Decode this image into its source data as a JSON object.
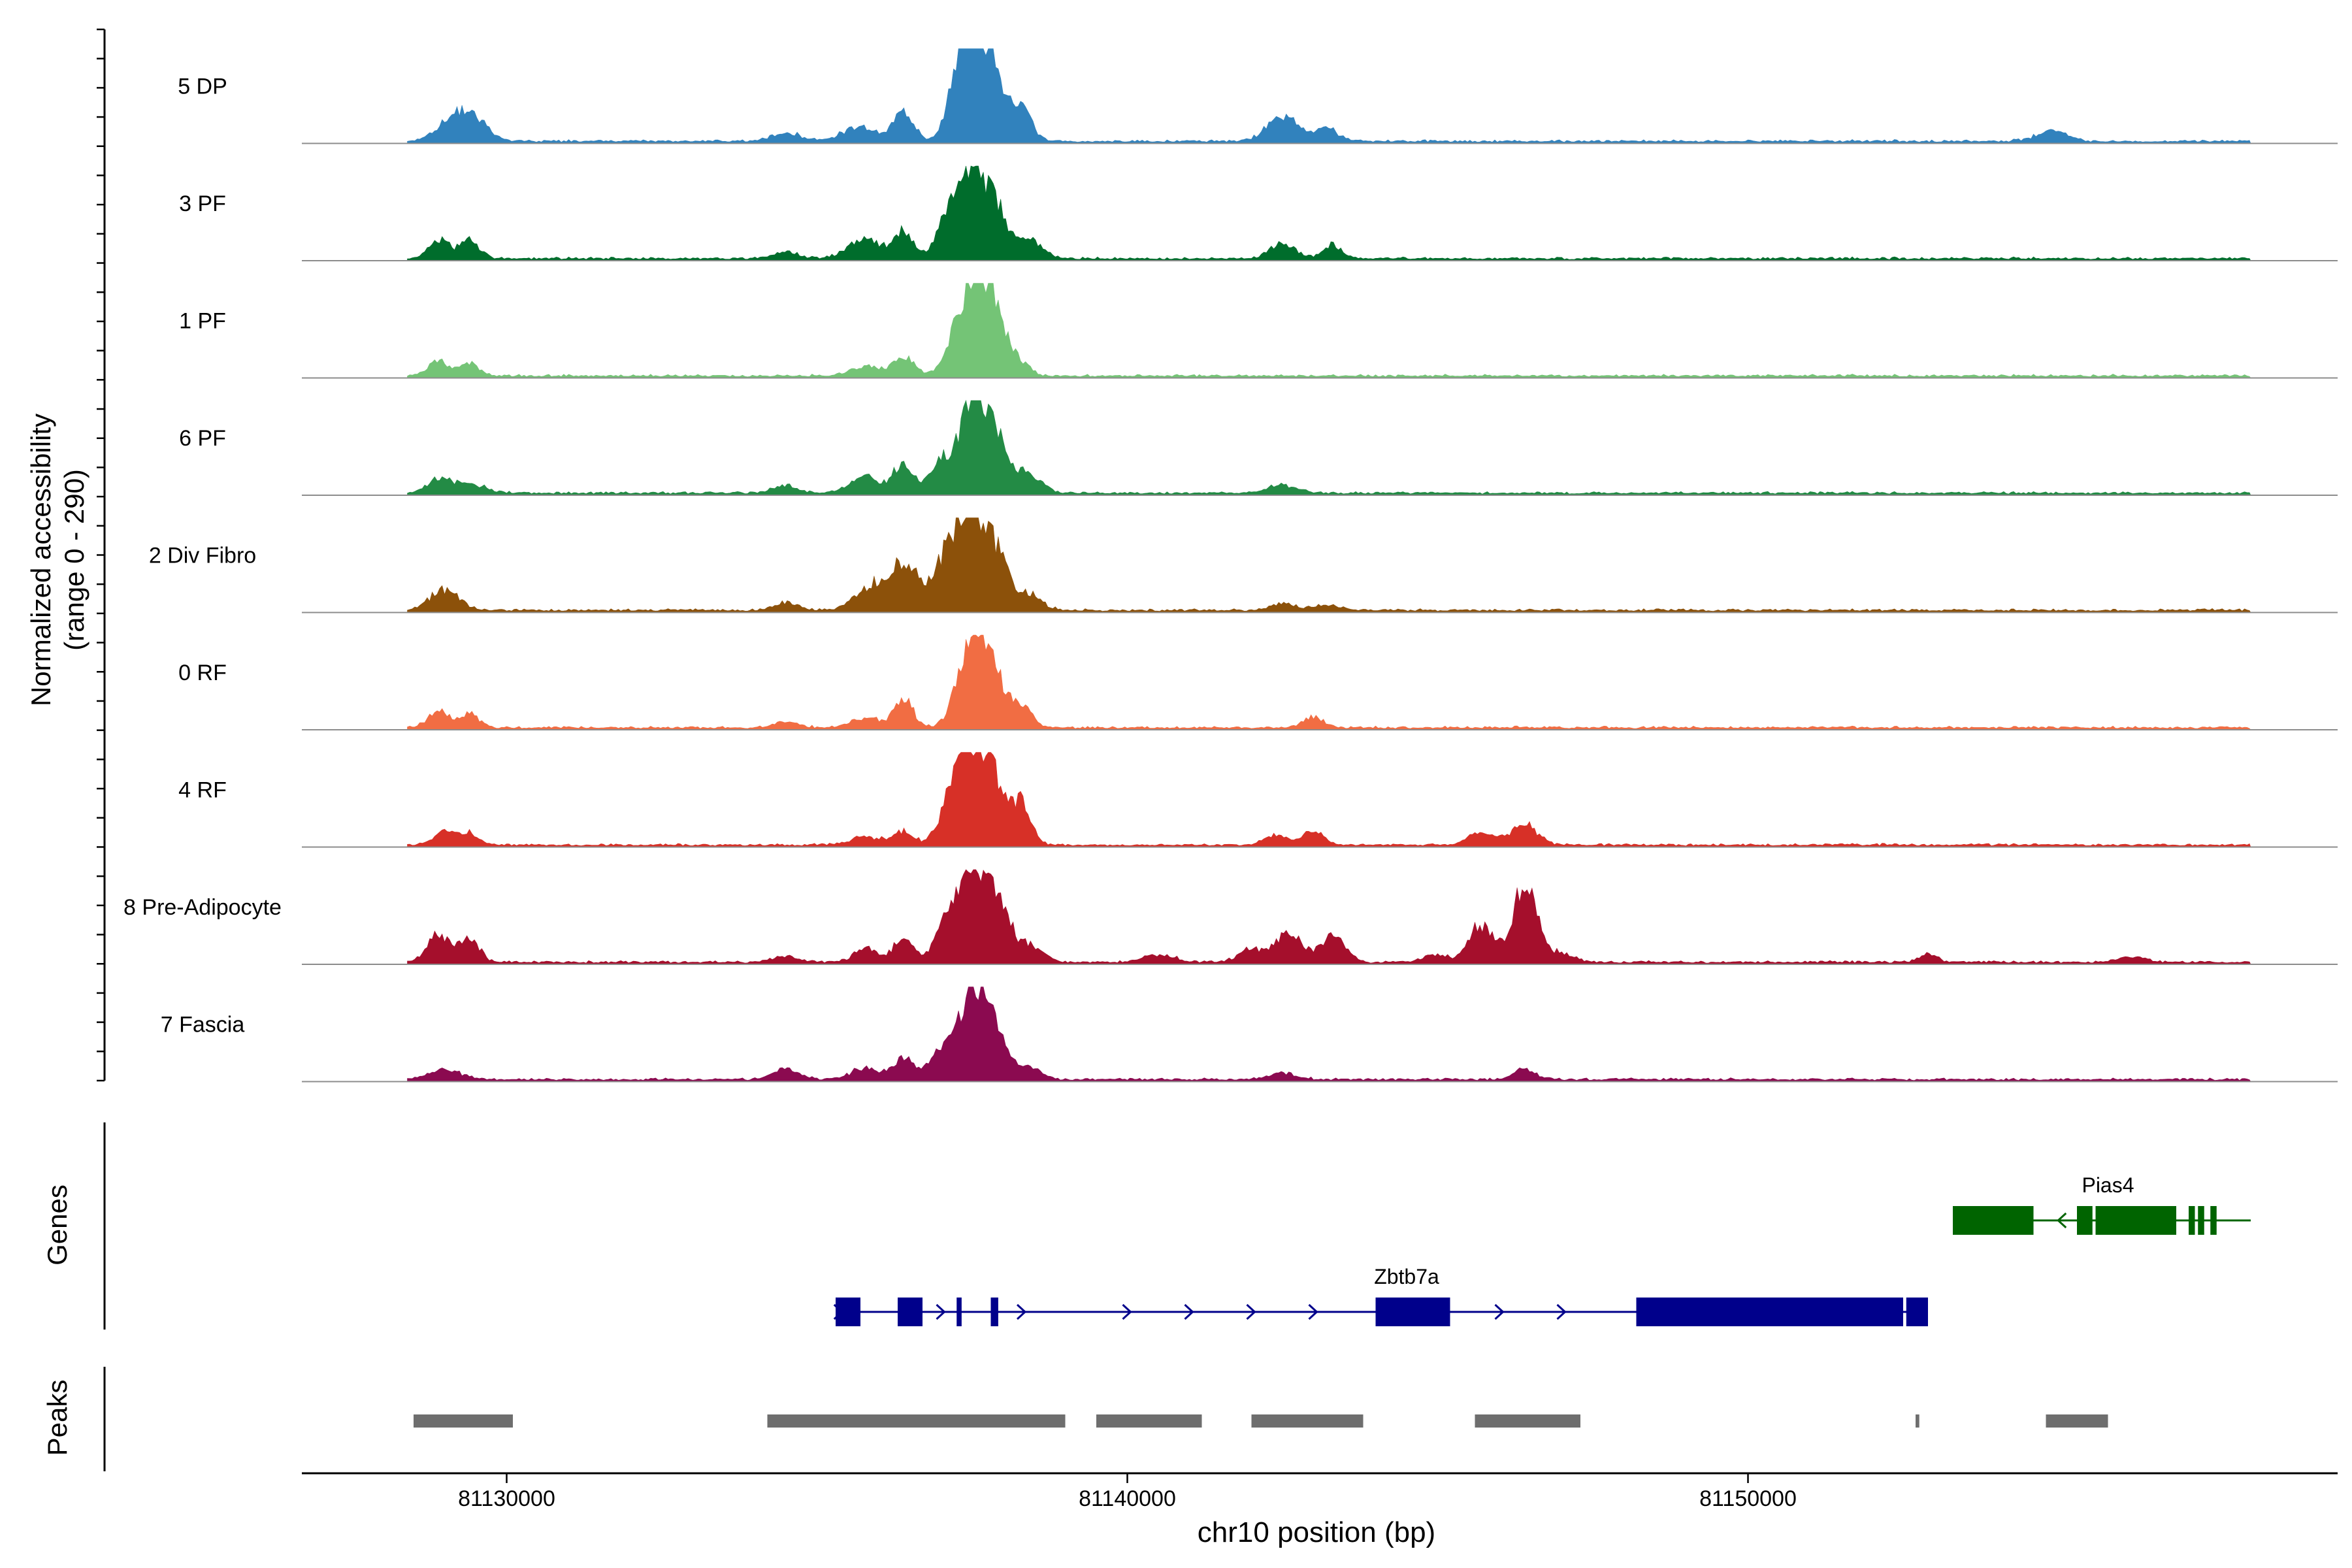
{
  "chart_data": {
    "type": "area",
    "title": "",
    "ylabel": "Normalized accessibility",
    "ylabel2": "(range 0 - 290)",
    "yrange": [
      0,
      290
    ],
    "xlabel": "chr10 position (bp)",
    "xlim": [
      81126700,
      81159500
    ],
    "xticks": [
      81130000,
      81140000,
      81150000
    ],
    "xtick_labels": [
      "81130000",
      "81140000",
      "81150000"
    ],
    "track_labels": {
      "genes": "Genes",
      "peaks": "Peaks"
    },
    "tracks": [
      {
        "name": "5 DP",
        "color": "#3182bd",
        "peaks": [
          [
            81129400,
            0.3,
            250
          ],
          [
            81129000,
            0.12,
            220
          ],
          [
            81134500,
            0.1,
            220
          ],
          [
            81135700,
            0.14,
            300
          ],
          [
            81136400,
            0.32,
            160
          ],
          [
            81137300,
            0.78,
            180
          ],
          [
            81137600,
            0.95,
            170
          ],
          [
            81137900,
            0.55,
            170
          ],
          [
            81138300,
            0.35,
            160
          ],
          [
            81142500,
            0.26,
            250
          ],
          [
            81143200,
            0.13,
            200
          ],
          [
            81154900,
            0.1,
            250
          ]
        ]
      },
      {
        "name": "3 PF",
        "color": "#006d2c",
        "peaks": [
          [
            81128900,
            0.2,
            160
          ],
          [
            81129400,
            0.2,
            160
          ],
          [
            81134500,
            0.08,
            200
          ],
          [
            81135800,
            0.2,
            280
          ],
          [
            81136400,
            0.28,
            150
          ],
          [
            81137100,
            0.45,
            170
          ],
          [
            81137500,
            1.0,
            200
          ],
          [
            81137900,
            0.45,
            170
          ],
          [
            81138400,
            0.22,
            200
          ],
          [
            81142500,
            0.16,
            200
          ],
          [
            81143300,
            0.14,
            160
          ]
        ]
      },
      {
        "name": "1 PF",
        "color": "#74c476",
        "peaks": [
          [
            81128900,
            0.16,
            160
          ],
          [
            81129400,
            0.12,
            160
          ],
          [
            81135800,
            0.1,
            250
          ],
          [
            81136400,
            0.2,
            160
          ],
          [
            81137500,
            1.0,
            260
          ],
          [
            81137900,
            0.45,
            200
          ],
          [
            81138300,
            0.1,
            150
          ]
        ]
      },
      {
        "name": "6 PF",
        "color": "#238b45",
        "peaks": [
          [
            81128900,
            0.14,
            180
          ],
          [
            81129400,
            0.1,
            250
          ],
          [
            81134500,
            0.08,
            200
          ],
          [
            81135800,
            0.16,
            250
          ],
          [
            81136400,
            0.3,
            160
          ],
          [
            81137000,
            0.35,
            170
          ],
          [
            81137500,
            1.0,
            200
          ],
          [
            81137900,
            0.5,
            200
          ],
          [
            81138400,
            0.2,
            200
          ],
          [
            81142500,
            0.08,
            250
          ]
        ]
      },
      {
        "name": "2 Div Fibro",
        "color": "#8c510a",
        "peaks": [
          [
            81129000,
            0.22,
            230
          ],
          [
            81134500,
            0.08,
            200
          ],
          [
            81135800,
            0.18,
            250
          ],
          [
            81136400,
            0.48,
            300
          ],
          [
            81137100,
            0.55,
            180
          ],
          [
            81137500,
            1.0,
            200
          ],
          [
            81137900,
            0.55,
            170
          ],
          [
            81138400,
            0.18,
            200
          ],
          [
            81142500,
            0.07,
            200
          ],
          [
            81143200,
            0.06,
            200
          ]
        ]
      },
      {
        "name": "0 RF",
        "color": "#f16d43",
        "peaks": [
          [
            81128900,
            0.18,
            160
          ],
          [
            81129400,
            0.14,
            160
          ],
          [
            81134500,
            0.07,
            200
          ],
          [
            81135800,
            0.1,
            250
          ],
          [
            81136400,
            0.3,
            150
          ],
          [
            81137500,
            1.0,
            220
          ],
          [
            81137900,
            0.4,
            180
          ],
          [
            81138300,
            0.22,
            160
          ],
          [
            81143000,
            0.12,
            160
          ]
        ]
      },
      {
        "name": "4 RF",
        "color": "#d73027",
        "peaks": [
          [
            81129000,
            0.14,
            170
          ],
          [
            81129400,
            0.12,
            160
          ],
          [
            81135800,
            0.08,
            250
          ],
          [
            81136400,
            0.14,
            160
          ],
          [
            81137200,
            0.45,
            200
          ],
          [
            81137500,
            0.95,
            230
          ],
          [
            81137900,
            0.5,
            200
          ],
          [
            81138300,
            0.4,
            150
          ],
          [
            81142400,
            0.1,
            180
          ],
          [
            81143000,
            0.16,
            160
          ],
          [
            81145700,
            0.14,
            200
          ],
          [
            81146400,
            0.22,
            200
          ]
        ]
      },
      {
        "name": "8 Pre-Adipocyte",
        "color": "#a50f2c",
        "peaks": [
          [
            81128900,
            0.28,
            180
          ],
          [
            81129400,
            0.25,
            160
          ],
          [
            81134500,
            0.07,
            200
          ],
          [
            81135800,
            0.14,
            200
          ],
          [
            81136400,
            0.25,
            160
          ],
          [
            81137100,
            0.48,
            180
          ],
          [
            81137500,
            1.0,
            200
          ],
          [
            81137900,
            0.55,
            200
          ],
          [
            81138400,
            0.18,
            220
          ],
          [
            81140500,
            0.08,
            250
          ],
          [
            81142000,
            0.14,
            200
          ],
          [
            81142600,
            0.32,
            200
          ],
          [
            81143300,
            0.28,
            200
          ],
          [
            81145000,
            0.08,
            200
          ],
          [
            81145700,
            0.4,
            180
          ],
          [
            81146400,
            0.78,
            200
          ],
          [
            81147000,
            0.1,
            200
          ],
          [
            81152900,
            0.08,
            150
          ],
          [
            81156200,
            0.06,
            200
          ]
        ]
      },
      {
        "name": "7 Fascia",
        "color": "#8b0a50",
        "peaks": [
          [
            81129000,
            0.1,
            250
          ],
          [
            81134500,
            0.12,
            200
          ],
          [
            81135800,
            0.12,
            250
          ],
          [
            81136400,
            0.22,
            160
          ],
          [
            81137000,
            0.3,
            180
          ],
          [
            81137500,
            1.0,
            200
          ],
          [
            81137900,
            0.45,
            180
          ],
          [
            81138400,
            0.14,
            200
          ],
          [
            81142500,
            0.06,
            250
          ],
          [
            81146400,
            0.12,
            160
          ]
        ]
      }
    ],
    "genes": [
      {
        "name": "Zbtb7a",
        "color": "#00008b",
        "strand": "+",
        "start": 81135300,
        "end": 81152900,
        "exons": [
          [
            81135300,
            81135700
          ],
          [
            81136300,
            81136700
          ],
          [
            81137250,
            81137330
          ],
          [
            81137800,
            81137920
          ],
          [
            81144000,
            81145200
          ],
          [
            81148200,
            81152500
          ],
          [
            81152550,
            81152900
          ]
        ],
        "arrows": [
          81135350,
          81137000,
          81138300,
          81140000,
          81141000,
          81142000,
          81143000,
          81146000,
          81147000
        ]
      },
      {
        "name": "Pias4",
        "color": "#006400",
        "strand": "-",
        "start": 81153300,
        "end": 81158100,
        "exons": [
          [
            81153300,
            81154600
          ],
          [
            81155300,
            81155550
          ],
          [
            81155600,
            81156900
          ],
          [
            81157100,
            81157200
          ],
          [
            81157250,
            81157350
          ],
          [
            81157450,
            81157550
          ]
        ],
        "arrows": [
          81155050
        ]
      }
    ],
    "peaks_track": [
      [
        81128500,
        81130100
      ],
      [
        81134200,
        81139000
      ],
      [
        81139500,
        81141200
      ],
      [
        81142000,
        81143800
      ],
      [
        81145600,
        81147300
      ],
      [
        81152700,
        81152760
      ],
      [
        81154800,
        81155800
      ]
    ]
  }
}
